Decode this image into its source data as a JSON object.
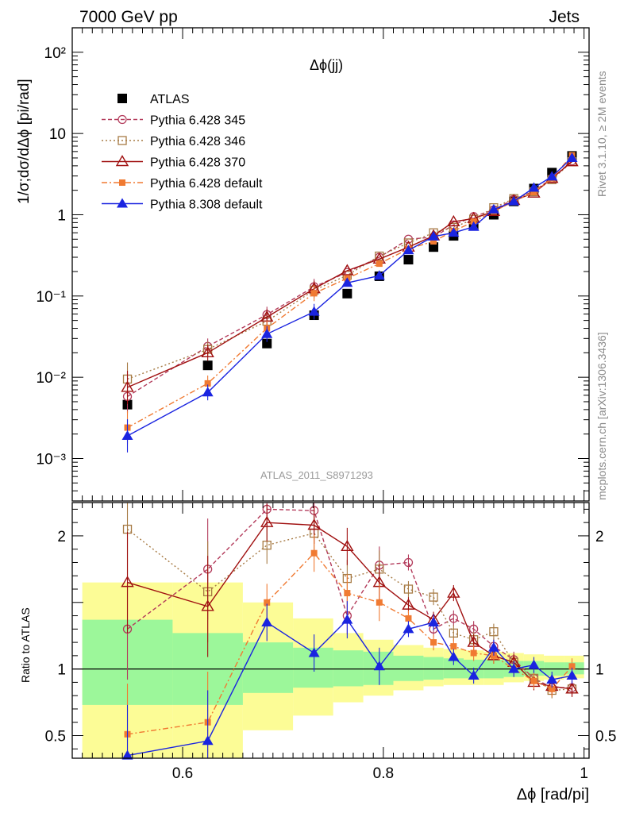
{
  "header": {
    "left": "7000 GeV pp",
    "right": "Jets"
  },
  "side_labels": {
    "rivet": "Rivet 3.1.10, ≥ 2M events",
    "mcplots": "mcplots.cern.ch [arXiv:1306.3436]"
  },
  "plot_title": "Δϕ(jj)",
  "analysis_id": "ATLAS_2011_S8971293",
  "colors": {
    "atlas": "#000000",
    "p345": "#b33b5b",
    "p346": "#a77b45",
    "p370": "#a01010",
    "p6def": "#f07a32",
    "p8def": "#1a24e0",
    "band_inner": "#9cf79a",
    "band_outer": "#fcfc96"
  },
  "chart_data": [
    {
      "type": "line",
      "title": "Δϕ(jj)",
      "xlabel": "Δϕ [rad/pi]",
      "ylabel": "1/σ;dσ/dΔϕ [pi/rad]",
      "yscale": "log",
      "xlim": [
        0.49,
        1.005
      ],
      "ylim": [
        0.0003,
        200
      ],
      "ytick_labels": [
        "10⁻³",
        "10⁻²",
        "10⁻¹",
        "1",
        "10",
        "10²"
      ],
      "legend_position": "top-left",
      "x": [
        0.545,
        0.625,
        0.684,
        0.731,
        0.764,
        0.796,
        0.825,
        0.85,
        0.87,
        0.89,
        0.91,
        0.93,
        0.95,
        0.968,
        0.988
      ],
      "series": [
        {
          "name": "ATLAS",
          "key": "atlas",
          "marker": "square-filled",
          "values": [
            0.0046,
            0.014,
            0.026,
            0.058,
            0.107,
            0.175,
            0.28,
            0.4,
            0.55,
            0.74,
            1.0,
            1.46,
            2.1,
            3.3,
            5.3
          ]
        },
        {
          "name": "Pythia 6.428 345",
          "key": "p345",
          "marker": "circle-open",
          "dash": "5,3",
          "values": [
            0.0058,
            0.024,
            0.059,
            0.13,
            0.195,
            0.3,
            0.5,
            0.53,
            0.75,
            0.95,
            1.15,
            1.55,
            1.95,
            2.8,
            4.6
          ]
        },
        {
          "name": "Pythia 6.428 346",
          "key": "p346",
          "marker": "square-open",
          "dash": "2,3",
          "values": [
            0.0095,
            0.022,
            0.049,
            0.118,
            0.18,
            0.31,
            0.45,
            0.6,
            0.7,
            0.88,
            1.22,
            1.58,
            1.92,
            2.7,
            4.5
          ]
        },
        {
          "name": "Pythia 6.428 370",
          "key": "p370",
          "marker": "triangle-open",
          "dash": "",
          "values": [
            0.0075,
            0.02,
            0.055,
            0.123,
            0.205,
            0.285,
            0.4,
            0.55,
            0.82,
            0.9,
            1.1,
            1.5,
            1.85,
            2.8,
            4.5
          ]
        },
        {
          "name": "Pythia 6.428 default",
          "key": "p6def",
          "marker": "square-filled-small",
          "dash": "7,3,2,3",
          "values": [
            0.0024,
            0.0084,
            0.04,
            0.108,
            0.165,
            0.25,
            0.38,
            0.47,
            0.63,
            0.82,
            1.1,
            1.46,
            1.9,
            2.8,
            5.4
          ]
        },
        {
          "name": "Pythia 8.308 default",
          "key": "p8def",
          "marker": "triangle-filled",
          "dash": "",
          "values": [
            0.0019,
            0.0065,
            0.034,
            0.064,
            0.145,
            0.178,
            0.365,
            0.54,
            0.6,
            0.71,
            1.16,
            1.46,
            2.15,
            2.95,
            5.0
          ]
        }
      ]
    },
    {
      "type": "line",
      "ylabel": "Ratio to ATLAS",
      "xlabel": "Δϕ [rad/pi]",
      "xlim": [
        0.49,
        1.005
      ],
      "ylim": [
        0.33,
        2.25
      ],
      "yticks": [
        0.5,
        1,
        2
      ],
      "ytick_labels": [
        "0.5",
        "1",
        "2"
      ],
      "xticks": [
        0.6,
        0.8,
        1
      ],
      "xtick_labels": [
        "0.6",
        "0.8",
        "1"
      ],
      "x": [
        0.545,
        0.625,
        0.684,
        0.731,
        0.764,
        0.796,
        0.825,
        0.85,
        0.87,
        0.89,
        0.91,
        0.93,
        0.95,
        0.968,
        0.988
      ],
      "bands": {
        "bin_edges": [
          0.5,
          0.59,
          0.66,
          0.71,
          0.75,
          0.78,
          0.81,
          0.84,
          0.86,
          0.88,
          0.9,
          0.92,
          0.94,
          0.96,
          0.98,
          1.0
        ],
        "inner_low": [
          0.73,
          0.73,
          0.82,
          0.86,
          0.87,
          0.88,
          0.91,
          0.92,
          0.93,
          0.93,
          0.93,
          0.94,
          0.95,
          0.95,
          0.96
        ],
        "inner_high": [
          1.37,
          1.27,
          1.2,
          1.16,
          1.14,
          1.13,
          1.1,
          1.09,
          1.08,
          1.07,
          1.07,
          1.06,
          1.06,
          1.05,
          1.05
        ],
        "outer_low": [
          0.3,
          0.3,
          0.54,
          0.65,
          0.75,
          0.8,
          0.84,
          0.87,
          0.88,
          0.88,
          0.88,
          0.9,
          0.91,
          0.92,
          0.93
        ],
        "outer_high": [
          1.65,
          1.65,
          1.5,
          1.38,
          1.27,
          1.22,
          1.18,
          1.16,
          1.15,
          1.14,
          1.13,
          1.12,
          1.11,
          1.1,
          1.1
        ]
      },
      "series": [
        {
          "name": "Pythia 6.428 345",
          "key": "p345",
          "values": [
            1.3,
            1.75,
            2.2,
            2.19,
            1.4,
            1.78,
            1.8,
            1.3,
            1.38,
            1.3,
            1.17,
            1.07,
            0.93,
            0.86,
            0.86
          ]
        },
        {
          "name": "Pythia 6.428 346",
          "key": "p346",
          "values": [
            2.05,
            1.58,
            1.93,
            2.02,
            1.68,
            1.75,
            1.6,
            1.54,
            1.27,
            1.22,
            1.28,
            1.05,
            0.93,
            0.84,
            0.85
          ]
        },
        {
          "name": "Pythia 6.428 370",
          "key": "p370",
          "values": [
            1.65,
            1.47,
            2.1,
            2.08,
            1.92,
            1.65,
            1.48,
            1.37,
            1.57,
            1.2,
            1.1,
            1.05,
            0.9,
            0.87,
            0.85
          ]
        },
        {
          "name": "Pythia 6.428 default",
          "key": "p6def",
          "values": [
            0.51,
            0.6,
            1.5,
            1.87,
            1.57,
            1.5,
            1.38,
            1.2,
            1.17,
            1.12,
            1.1,
            1.0,
            0.91,
            0.85,
            1.02
          ]
        },
        {
          "name": "Pythia 8.308 default",
          "key": "p8def",
          "values": [
            0.35,
            0.46,
            1.35,
            1.12,
            1.37,
            1.02,
            1.3,
            1.35,
            1.09,
            0.95,
            1.16,
            1.0,
            1.03,
            0.92,
            0.95
          ]
        }
      ]
    }
  ]
}
